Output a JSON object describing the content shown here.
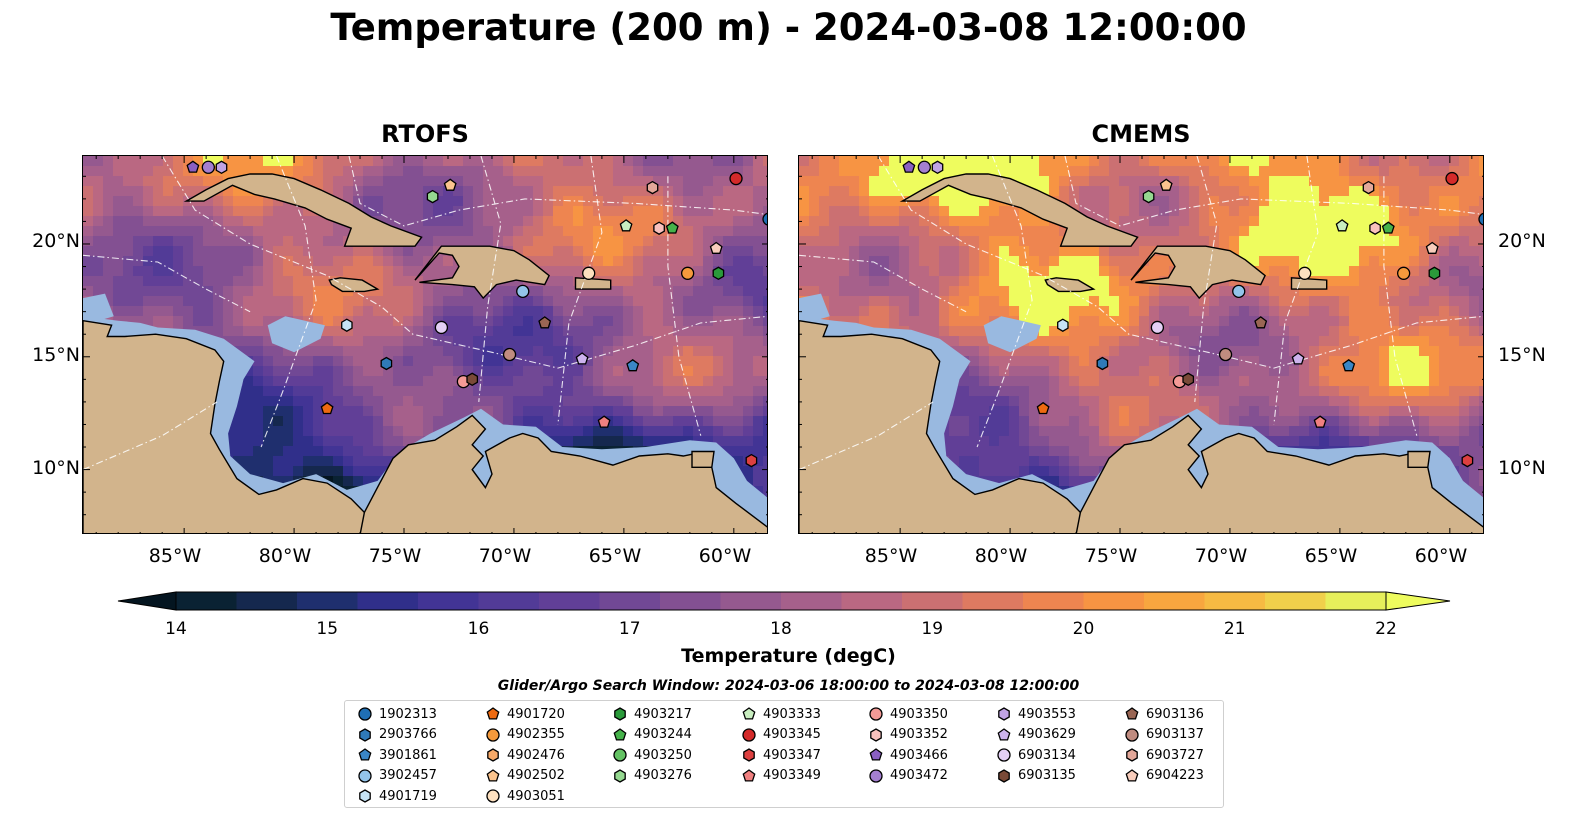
{
  "title": "Temperature (200 m) - 2024-03-08 12:00:00",
  "panels": [
    {
      "title": "RTOFS"
    },
    {
      "title": "CMEMS"
    }
  ],
  "lat_labels": [
    "20°N",
    "15°N",
    "10°N"
  ],
  "lon_labels": [
    "85°W",
    "80°W",
    "75°W",
    "70°W",
    "65°W",
    "60°W"
  ],
  "map_extent": {
    "lon": [
      -89.6,
      -58.4
    ],
    "lat": [
      7.1,
      23.9
    ]
  },
  "colorbar": {
    "label": "Temperature (degC)",
    "ticks": [
      "14",
      "15",
      "16",
      "17",
      "18",
      "19",
      "20",
      "21",
      "22"
    ],
    "min": 14,
    "max": 22,
    "step": 0.5,
    "extend": "both",
    "colors": [
      "#0a2233",
      "#15284e",
      "#1f2f6e",
      "#302f8a",
      "#423495",
      "#523b97",
      "#613f97",
      "#714895",
      "#835092",
      "#95598f",
      "#a6608b",
      "#ba6882",
      "#cb7072",
      "#de7a61",
      "#ee8550",
      "#f79443",
      "#f8a63f",
      "#f6ba43",
      "#f0d04b",
      "#e6ef5b"
    ],
    "under_color": "#041520",
    "over_color": "#eefc5e"
  },
  "map_colors": {
    "land": "#d2b48c",
    "shallow": "#99b9e0",
    "deep": "#0a2233",
    "coast": "#000000",
    "eez": "#ffffff"
  },
  "legend": {
    "title": "Glider/Argo Search Window: 2024-03-06 18:00:00 to 2024-03-08 12:00:00",
    "columns": [
      [
        {
          "id": "1902313",
          "marker": "circle",
          "color": "#1f6fb4"
        },
        {
          "id": "2903766",
          "marker": "hexagon",
          "color": "#2f7ab8"
        },
        {
          "id": "3901861",
          "marker": "pentagon",
          "color": "#3a86c6"
        },
        {
          "id": "3902457",
          "marker": "circle",
          "color": "#93c4ea"
        },
        {
          "id": "4901719",
          "marker": "hexagon",
          "color": "#c6e3f5"
        }
      ],
      [
        {
          "id": "4901720",
          "marker": "pentagon",
          "color": "#ee6a10"
        },
        {
          "id": "4902355",
          "marker": "circle",
          "color": "#f59a3c"
        },
        {
          "id": "4902476",
          "marker": "hexagon",
          "color": "#f7a968"
        },
        {
          "id": "4902502",
          "marker": "pentagon",
          "color": "#fbc48e"
        },
        {
          "id": "4903051",
          "marker": "circle",
          "color": "#fde0bf"
        }
      ],
      [
        {
          "id": "4903217",
          "marker": "hexagon",
          "color": "#2a9a3a"
        },
        {
          "id": "4903244",
          "marker": "pentagon",
          "color": "#45b24a"
        },
        {
          "id": "4903250",
          "marker": "circle",
          "color": "#63c263"
        },
        {
          "id": "4903276",
          "marker": "hexagon",
          "color": "#95d890"
        }
      ],
      [
        {
          "id": "4903333",
          "marker": "pentagon",
          "color": "#c9eec0"
        },
        {
          "id": "4903345",
          "marker": "circle",
          "color": "#d42a2a"
        },
        {
          "id": "4903347",
          "marker": "hexagon",
          "color": "#dd4040"
        },
        {
          "id": "4903349",
          "marker": "pentagon",
          "color": "#f08080"
        }
      ],
      [
        {
          "id": "4903350",
          "marker": "circle",
          "color": "#f49a96"
        },
        {
          "id": "4903352",
          "marker": "hexagon",
          "color": "#f9c1bd"
        },
        {
          "id": "4903466",
          "marker": "pentagon",
          "color": "#8a5fc2"
        },
        {
          "id": "4903472",
          "marker": "circle",
          "color": "#a47fd0"
        }
      ],
      [
        {
          "id": "4903553",
          "marker": "hexagon",
          "color": "#c0a3e4"
        },
        {
          "id": "4903629",
          "marker": "pentagon",
          "color": "#cdb3ee"
        },
        {
          "id": "6903134",
          "marker": "circle",
          "color": "#e4d0f5"
        },
        {
          "id": "6903135",
          "marker": "hexagon",
          "color": "#7a4a38"
        }
      ],
      [
        {
          "id": "6903136",
          "marker": "pentagon",
          "color": "#9a6654"
        },
        {
          "id": "6903137",
          "marker": "circle",
          "color": "#c08c80"
        },
        {
          "id": "6903727",
          "marker": "hexagon",
          "color": "#e4a89a"
        },
        {
          "id": "6904223",
          "marker": "pentagon",
          "color": "#f8cdbc"
        }
      ]
    ]
  },
  "float_positions": [
    {
      "marker": "pentagon",
      "color": "#8a5fc2",
      "lon": -84.6,
      "lat": 23.4
    },
    {
      "marker": "circle",
      "color": "#a47fd0",
      "lon": -83.9,
      "lat": 23.4
    },
    {
      "marker": "hexagon",
      "color": "#c0a3e4",
      "lon": -83.3,
      "lat": 23.4
    },
    {
      "marker": "hexagon",
      "color": "#95d890",
      "lon": -73.7,
      "lat": 22.1
    },
    {
      "marker": "pentagon",
      "color": "#fbc48e",
      "lon": -72.9,
      "lat": 22.6
    },
    {
      "marker": "hexagon",
      "color": "#e4a89a",
      "lon": -63.7,
      "lat": 22.5
    },
    {
      "marker": "circle",
      "color": "#d42a2a",
      "lon": -59.9,
      "lat": 22.9
    },
    {
      "marker": "circle",
      "color": "#1f6fb4",
      "lon": -58.4,
      "lat": 21.1
    },
    {
      "marker": "pentagon",
      "color": "#c9eec0",
      "lon": -64.9,
      "lat": 20.8
    },
    {
      "marker": "hexagon",
      "color": "#f9c1bd",
      "lon": -63.4,
      "lat": 20.7
    },
    {
      "marker": "pentagon",
      "color": "#45b24a",
      "lon": -62.8,
      "lat": 20.7
    },
    {
      "marker": "pentagon",
      "color": "#f8cdbc",
      "lon": -60.8,
      "lat": 19.8
    },
    {
      "marker": "circle",
      "color": "#fde0bf",
      "lon": -66.6,
      "lat": 18.7
    },
    {
      "marker": "circle",
      "color": "#f59a3c",
      "lon": -62.1,
      "lat": 18.7
    },
    {
      "marker": "hexagon",
      "color": "#2a9a3a",
      "lon": -60.7,
      "lat": 18.7
    },
    {
      "marker": "circle",
      "color": "#93c4ea",
      "lon": -69.6,
      "lat": 17.9
    },
    {
      "marker": "hexagon",
      "color": "#c6e3f5",
      "lon": -77.6,
      "lat": 16.4
    },
    {
      "marker": "circle",
      "color": "#e4d0f5",
      "lon": -73.3,
      "lat": 16.3
    },
    {
      "marker": "pentagon",
      "color": "#9a6654",
      "lon": -68.6,
      "lat": 16.5
    },
    {
      "marker": "circle",
      "color": "#c08c80",
      "lon": -70.2,
      "lat": 15.1
    },
    {
      "marker": "pentagon",
      "color": "#cdb3ee",
      "lon": -66.9,
      "lat": 14.9
    },
    {
      "marker": "hexagon",
      "color": "#2f7ab8",
      "lon": -75.8,
      "lat": 14.7
    },
    {
      "marker": "pentagon",
      "color": "#3a86c6",
      "lon": -64.6,
      "lat": 14.6
    },
    {
      "marker": "circle",
      "color": "#f49a96",
      "lon": -72.3,
      "lat": 13.9
    },
    {
      "marker": "hexagon",
      "color": "#7a4a38",
      "lon": -71.9,
      "lat": 14.0
    },
    {
      "marker": "pentagon",
      "color": "#ee6a10",
      "lon": -78.5,
      "lat": 12.7
    },
    {
      "marker": "pentagon",
      "color": "#f08080",
      "lon": -65.9,
      "lat": 12.1
    },
    {
      "marker": "hexagon",
      "color": "#dd4040",
      "lon": -59.2,
      "lat": 10.4
    }
  ]
}
